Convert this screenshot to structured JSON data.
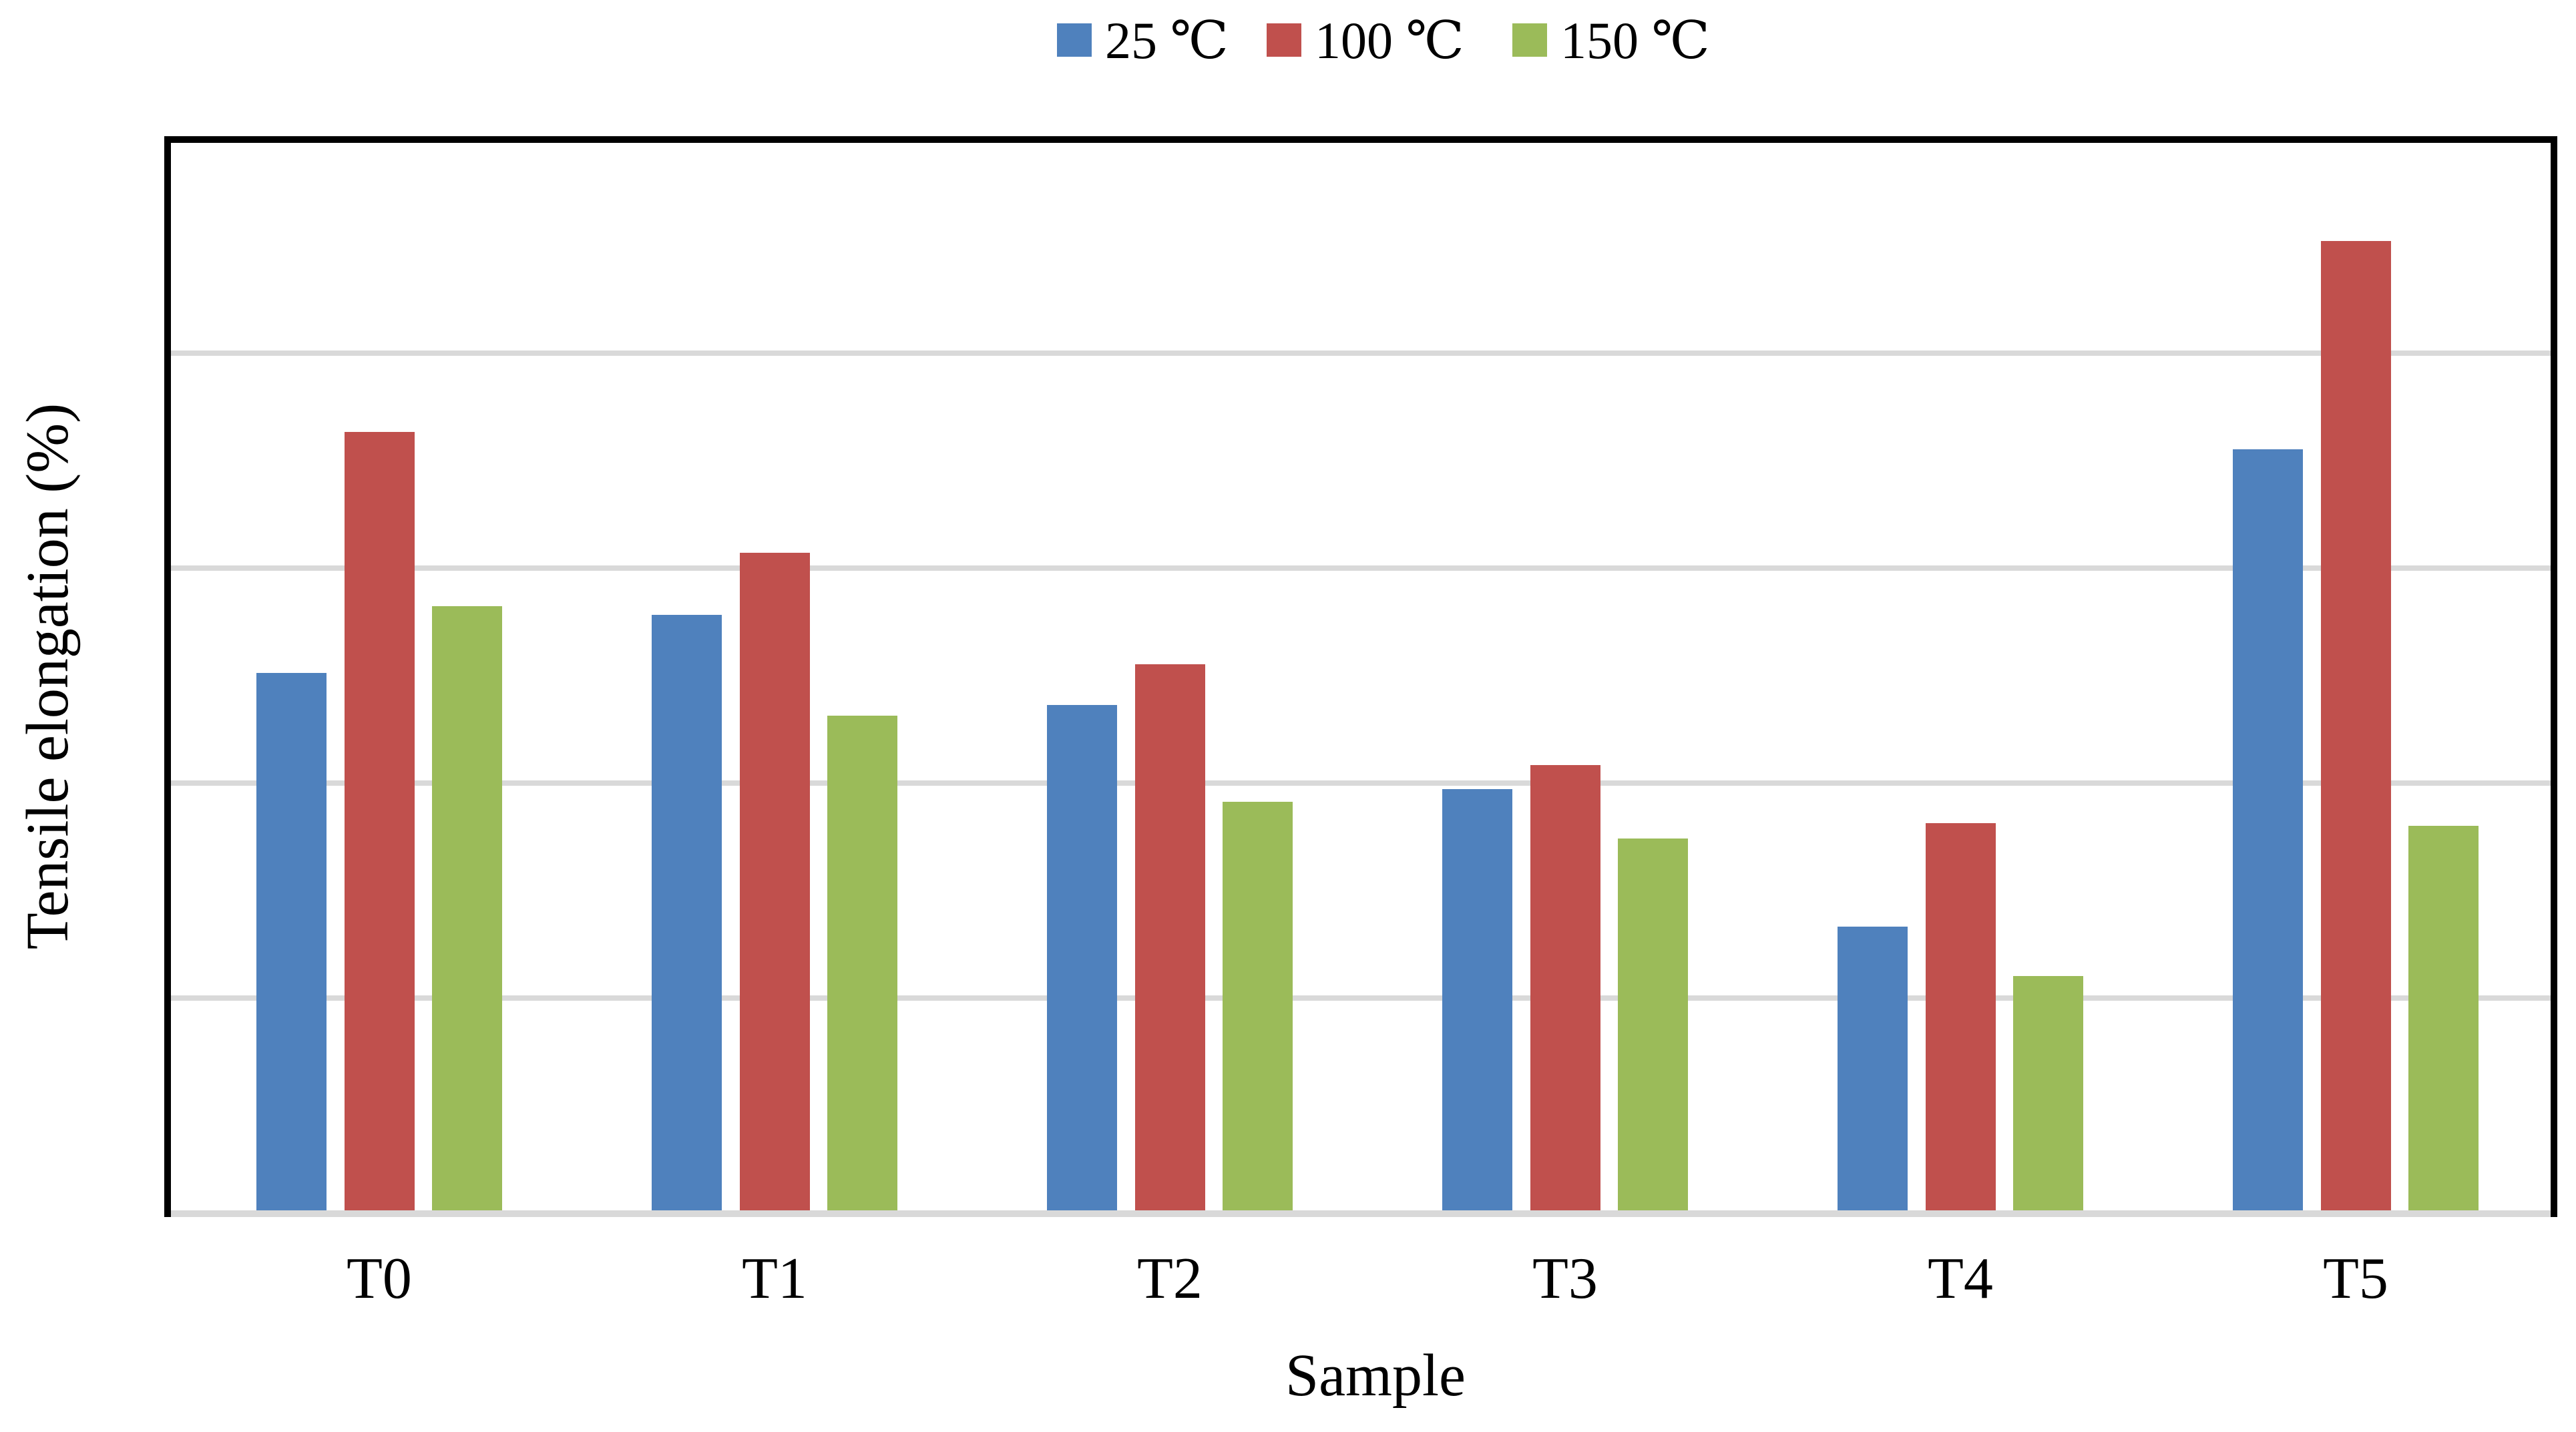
{
  "chart_data": {
    "type": "bar",
    "categories": [
      "T0",
      "T1",
      "T2",
      "T3",
      "T4",
      "T5"
    ],
    "series": [
      {
        "name": "25 ℃",
        "color": "#4F81BD",
        "values": [
          2.5,
          2.77,
          2.35,
          1.96,
          1.32,
          3.54
        ]
      },
      {
        "name": "100 ℃",
        "color": "#C0504D",
        "values": [
          3.62,
          3.06,
          2.54,
          2.07,
          1.8,
          4.51
        ]
      },
      {
        "name": "150 ℃",
        "color": "#9BBB59",
        "values": [
          2.81,
          2.3,
          1.9,
          1.73,
          1.09,
          1.79
        ]
      }
    ],
    "xlabel": "Sample",
    "ylabel": "Tensile elongation  (%)",
    "ylim": [
      0,
      5
    ],
    "y_gridline_step": 1,
    "y_tick_labels_visible": false,
    "grid": "horizontal",
    "legend_position": "top-center",
    "colors": {
      "gridline": "#D9D9D9",
      "axis_line": "#D9D9D9",
      "plot_border": "#000000",
      "background": "#FFFFFF",
      "text": "#000000"
    }
  }
}
